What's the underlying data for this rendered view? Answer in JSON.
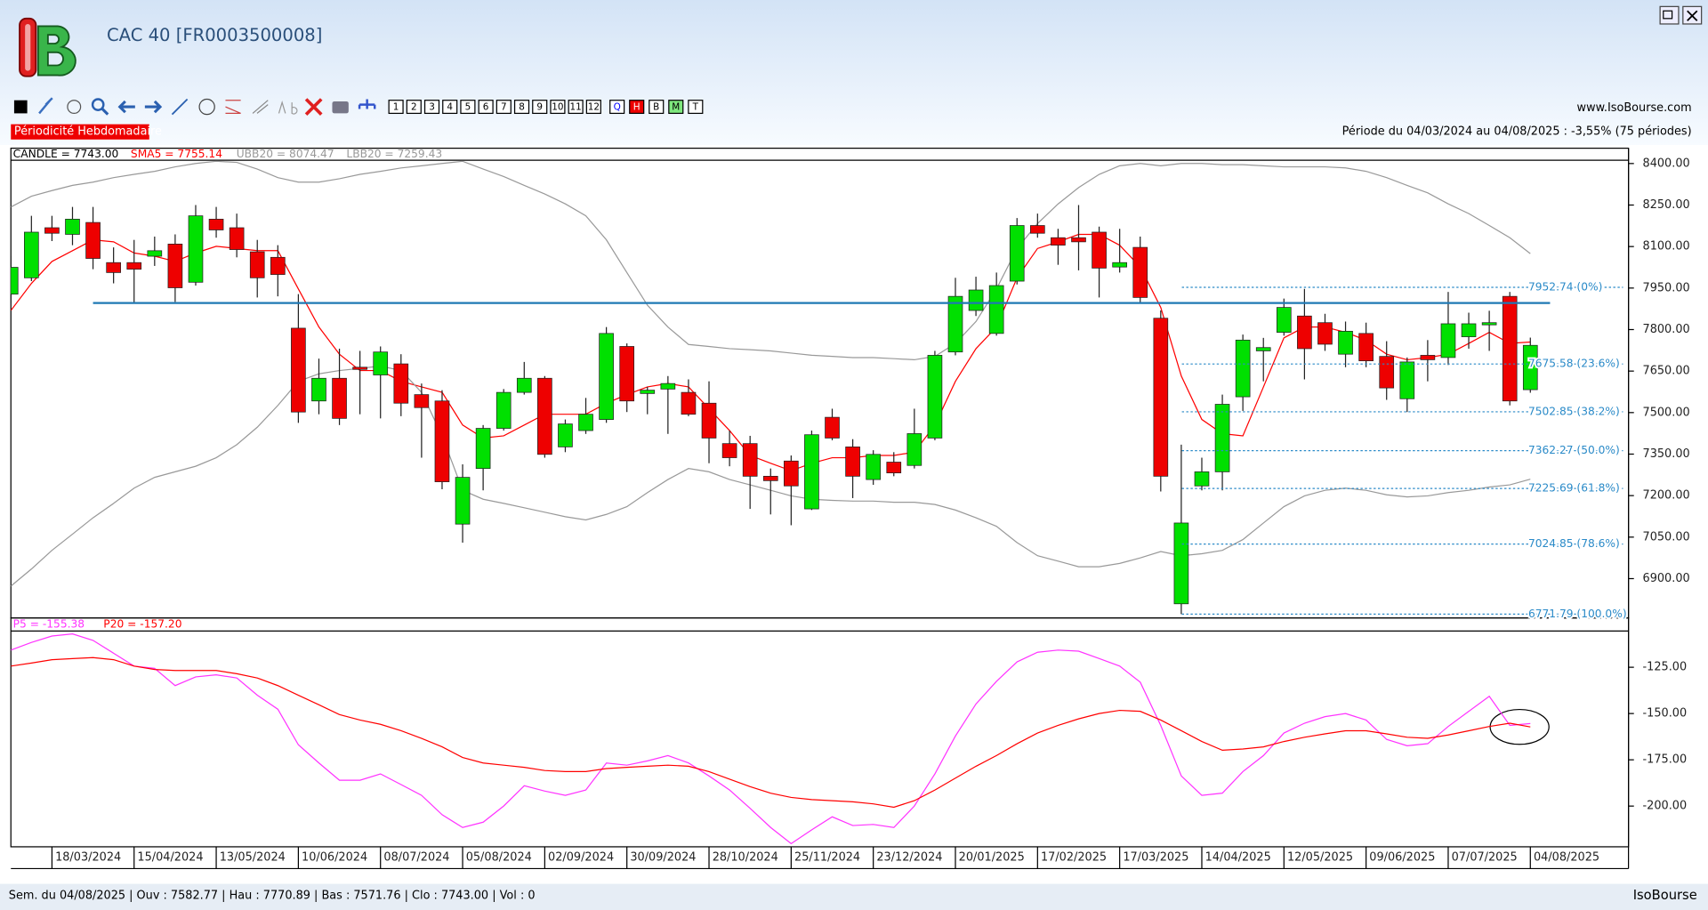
{
  "app": {
    "title": "CAC 40 [FR0003500008]",
    "website": "www.IsoBourse.com",
    "periodicity": "Périodicité Hebdomadaire",
    "period": "Période du 04/03/2024 au 04/08/2025 : -3,55% (75 périodes)",
    "footer": "Sem. du 04/08/2025 | Ouv : 7582.77 | Hau : 7770.89 | Bas : 7571.76 | Clo : 7743.00 | Vol : 0",
    "brand": "IsoBourse",
    "toolbar_buttons": [
      "1",
      "2",
      "3",
      "4",
      "5",
      "6",
      "7",
      "8",
      "9",
      "10",
      "11",
      "12",
      "Q",
      "H",
      "B",
      "M",
      "T"
    ]
  },
  "chart_data": [
    {
      "type": "candlestick",
      "categories": [
        null,
        null,
        "18/03/2024",
        null,
        null,
        null,
        "15/04/2024",
        null,
        null,
        null,
        "13/05/2024",
        null,
        null,
        null,
        "10/06/2024",
        null,
        null,
        null,
        "08/07/2024",
        null,
        null,
        null,
        "05/08/2024",
        null,
        null,
        null,
        "02/09/2024",
        null,
        null,
        null,
        "30/09/2024",
        null,
        null,
        null,
        "28/10/2024",
        null,
        null,
        null,
        "25/11/2024",
        null,
        null,
        null,
        "23/12/2024",
        null,
        null,
        null,
        "20/01/2025",
        null,
        null,
        null,
        "17/02/2025",
        null,
        null,
        null,
        "17/03/2025",
        null,
        null,
        null,
        "14/04/2025",
        null,
        null,
        null,
        "12/05/2025",
        null,
        null,
        null,
        "09/06/2025",
        null,
        null,
        null,
        "07/07/2025",
        null,
        null,
        null,
        "04/08/2025"
      ],
      "candles": {
        "name": "CANDLE",
        "legend": "CANDLE = 7743.00",
        "up_color": "#00e000",
        "down_color": "#ee0000",
        "open": [
          7928,
          7987,
          8168,
          8144,
          8187,
          8042,
          8042,
          8065,
          8109,
          7971,
          8199,
          8168,
          8081,
          8061,
          7805,
          7542,
          7624,
          7664,
          7636,
          7676,
          7565,
          7542,
          7097,
          7298,
          7443,
          7573,
          7624,
          7376,
          7435,
          7475,
          7739,
          7569,
          7585,
          7573,
          7534,
          7388,
          7388,
          7270,
          7325,
          7152,
          7483,
          7376,
          7258,
          7321,
          7309,
          7408,
          7719,
          7869,
          7786,
          7975,
          8176,
          8132,
          8132,
          8152,
          8026,
          8097,
          7841,
          6809,
          7235,
          7286,
          7557,
          7723,
          7790,
          7849,
          7825,
          7711,
          7786,
          7703,
          7550,
          7707,
          7699,
          7774,
          7817,
          7920,
          7582.77
        ],
        "high": [
          8065,
          8211,
          8211,
          8243,
          8243,
          8097,
          8124,
          8136,
          8144,
          8250,
          8243,
          8219,
          8124,
          8105,
          7928,
          7695,
          7731,
          7723,
          7739,
          7711,
          7605,
          7581,
          7313,
          7455,
          7585,
          7683,
          7632,
          7475,
          7553,
          7809,
          7750,
          7593,
          7632,
          7620,
          7613,
          7435,
          7416,
          7298,
          7345,
          7435,
          7514,
          7404,
          7364,
          7357,
          7514,
          7723,
          7987,
          7991,
          8006,
          8203,
          8219,
          8164,
          8250,
          8172,
          8164,
          8136,
          7869,
          7384,
          7337,
          7565,
          7782,
          7770,
          7912,
          7947,
          7857,
          7829,
          7825,
          7758,
          7699,
          7762,
          7936,
          7861,
          7868,
          7936,
          7770.89
        ],
        "low": [
          7896,
          7975,
          8120,
          8105,
          8018,
          7967,
          7896,
          8030,
          7900,
          7959,
          8132,
          8061,
          7916,
          7920,
          7463,
          7494,
          7455,
          7494,
          7479,
          7487,
          7337,
          7223,
          7030,
          7219,
          7435,
          7565,
          7337,
          7357,
          7423,
          7463,
          7502,
          7494,
          7423,
          7487,
          7317,
          7306,
          7152,
          7132,
          7093,
          7148,
          7400,
          7191,
          7239,
          7270,
          7298,
          7400,
          7707,
          7849,
          7778,
          7963,
          8132,
          8034,
          8014,
          7916,
          8006,
          7896,
          7215,
          6771.79,
          7219,
          7219,
          7506,
          7613,
          7778,
          7620,
          7723,
          7664,
          7664,
          7546,
          7502,
          7613,
          7672,
          7731,
          7723,
          7526,
          7571.76
        ],
        "close": [
          8025,
          8152,
          8148,
          8199,
          8057,
          8006,
          8018,
          8085,
          7951,
          8211,
          8160,
          8089,
          7987,
          7999,
          7502,
          7624,
          7479,
          7656,
          7719,
          7534,
          7518,
          7250,
          7266,
          7443,
          7573,
          7624,
          7349,
          7459,
          7494,
          7786,
          7542,
          7581,
          7605,
          7494,
          7408,
          7337,
          7270,
          7254,
          7235,
          7420,
          7408,
          7270,
          7349,
          7282,
          7424,
          7707,
          7920,
          7943,
          7959,
          8176,
          8148,
          8105,
          8117,
          8022,
          8042,
          7916,
          7270,
          7101,
          7286,
          7530,
          7762,
          7735,
          7880,
          7731,
          7747,
          7794,
          7687,
          7589,
          7683,
          7691,
          7821,
          7821,
          7825,
          7542,
          7743.0
        ]
      },
      "series": [
        {
          "name": "SMA5",
          "legend": "SMA5 = 7755.14",
          "color": "#ff0000",
          "values": [
            7869,
            7967,
            8046,
            8085,
            8124,
            8117,
            8077,
            8065,
            8046,
            8077,
            8101,
            8093,
            8085,
            8085,
            7947,
            7809,
            7711,
            7652,
            7652,
            7613,
            7593,
            7573,
            7455,
            7408,
            7416,
            7455,
            7494,
            7494,
            7494,
            7534,
            7565,
            7593,
            7605,
            7593,
            7514,
            7435,
            7345,
            7317,
            7290,
            7317,
            7337,
            7337,
            7345,
            7345,
            7357,
            7455,
            7613,
            7731,
            7809,
            7987,
            8093,
            8117,
            8144,
            8144,
            8105,
            8026,
            7880,
            7632,
            7475,
            7424,
            7416,
            7593,
            7770,
            7809,
            7809,
            7790,
            7762,
            7711,
            7691,
            7699,
            7711,
            7750,
            7790,
            7750,
            7755.14
          ]
        },
        {
          "name": "UBB20",
          "legend": "UBB20 = 8074.47",
          "color": "#999999",
          "values": [
            8243,
            8282,
            8302,
            8321,
            8333,
            8349,
            8361,
            8372,
            8388,
            8400,
            8408,
            8404,
            8380,
            8349,
            8333,
            8333,
            8345,
            8361,
            8372,
            8384,
            8392,
            8400,
            8408,
            8380,
            8353,
            8321,
            8290,
            8254,
            8211,
            8124,
            8006,
            7888,
            7809,
            7746,
            7739,
            7731,
            7727,
            7723,
            7715,
            7707,
            7703,
            7699,
            7699,
            7695,
            7691,
            7703,
            7750,
            7829,
            7947,
            8093,
            8183,
            8254,
            8313,
            8361,
            8392,
            8400,
            8392,
            8400,
            8400,
            8396,
            8396,
            8392,
            8388,
            8388,
            8388,
            8384,
            8372,
            8349,
            8321,
            8294,
            8254,
            8219,
            8176,
            8132,
            8074.47
          ]
        },
        {
          "name": "LBB20",
          "legend": "LBB20 = 7259.43",
          "color": "#999999",
          "values": [
            6873,
            6935,
            7002,
            7061,
            7120,
            7172,
            7227,
            7266,
            7286,
            7306,
            7337,
            7384,
            7447,
            7526,
            7613,
            7640,
            7652,
            7660,
            7668,
            7652,
            7573,
            7416,
            7219,
            7187,
            7172,
            7156,
            7140,
            7124,
            7112,
            7132,
            7160,
            7211,
            7258,
            7298,
            7286,
            7258,
            7239,
            7219,
            7199,
            7187,
            7183,
            7180,
            7180,
            7176,
            7176,
            7168,
            7148,
            7120,
            7089,
            7030,
            6983,
            6963,
            6943,
            6943,
            6955,
            6975,
            6998,
            6983,
            6990,
            7002,
            7041,
            7101,
            7160,
            7199,
            7219,
            7227,
            7219,
            7203,
            7195,
            7199,
            7211,
            7219,
            7231,
            7239,
            7259.43
          ]
        }
      ],
      "ylim": [
        6758,
        8412
      ],
      "yticks": [
        {
          "value": 8400,
          "label": "8400.00"
        },
        {
          "value": 8250,
          "label": "8250.00"
        },
        {
          "value": 8100,
          "label": "8100.00"
        },
        {
          "value": 7950,
          "label": "7950.00"
        },
        {
          "value": 7800,
          "label": "7800.00"
        },
        {
          "value": 7650,
          "label": "7650.00"
        },
        {
          "value": 7500,
          "label": "7500.00"
        },
        {
          "value": 7350,
          "label": "7350.00"
        },
        {
          "value": 7200,
          "label": "7200.00"
        },
        {
          "value": 7050,
          "label": "7050.00"
        },
        {
          "value": 6900,
          "label": "6900.00"
        }
      ],
      "horizontal_line": {
        "value": 7896,
        "color": "#1f78b4"
      },
      "fib_color": "#2a8ac8",
      "fib_levels": [
        {
          "value": 7952.74,
          "label": "7952.74 (0%)"
        },
        {
          "value": 7675.58,
          "label": "7675.58 (23.6%)"
        },
        {
          "value": 7502.85,
          "label": "7502.85 (38.2%)"
        },
        {
          "value": 7362.27,
          "label": "7362.27 (50.0%)"
        },
        {
          "value": 7225.69,
          "label": "7225.69 (61.8%)"
        },
        {
          "value": 7024.85,
          "label": "7024.85 (78.6%)"
        },
        {
          "value": 6771.79,
          "label": "6771.79 (100.0%)"
        }
      ]
    },
    {
      "type": "line",
      "series": [
        {
          "name": "P5",
          "legend": "P5 = -155.38",
          "color": "#ff33ff",
          "values": [
            -115.7,
            -111.6,
            -108.1,
            -107.0,
            -110.5,
            -117.4,
            -124.4,
            -125.6,
            -134.9,
            -130.2,
            -129.1,
            -130.8,
            -140.1,
            -147.7,
            -166.9,
            -176.7,
            -186.0,
            -186.0,
            -182.6,
            -188.4,
            -194.2,
            -204.7,
            -211.6,
            -208.7,
            -200.0,
            -189.0,
            -191.9,
            -194.2,
            -191.3,
            -176.7,
            -177.9,
            -175.6,
            -172.7,
            -176.7,
            -183.7,
            -191.3,
            -201.2,
            -211.6,
            -220.3,
            -212.8,
            -205.8,
            -210.5,
            -209.9,
            -211.6,
            -200.0,
            -182.6,
            -162.2,
            -144.8,
            -132.6,
            -122.1,
            -116.9,
            -115.7,
            -116.3,
            -120.3,
            -124.4,
            -133.1,
            -156.4,
            -183.7,
            -194.2,
            -193.0,
            -181.4,
            -172.7,
            -160.5,
            -155.2,
            -151.7,
            -150.0,
            -153.5,
            -164.0,
            -167.4,
            -166.3,
            -157.0,
            -148.8,
            -140.7,
            -156.4,
            -155.38
          ]
        },
        {
          "name": "P20",
          "legend": "P20 = -157.20",
          "color": "#ff0000",
          "values": [
            -124.4,
            -122.7,
            -120.9,
            -120.3,
            -119.8,
            -120.9,
            -124.4,
            -126.2,
            -126.7,
            -126.7,
            -126.7,
            -128.5,
            -130.8,
            -134.9,
            -140.1,
            -145.3,
            -150.6,
            -153.5,
            -155.8,
            -159.3,
            -163.4,
            -168.0,
            -173.8,
            -176.7,
            -177.9,
            -179.1,
            -180.8,
            -181.4,
            -181.4,
            -179.7,
            -179.1,
            -178.5,
            -177.9,
            -178.5,
            -181.4,
            -185.5,
            -189.5,
            -193.0,
            -195.3,
            -196.5,
            -197.1,
            -197.7,
            -198.8,
            -200.6,
            -197.1,
            -191.3,
            -184.9,
            -178.5,
            -172.7,
            -166.3,
            -160.5,
            -156.4,
            -152.9,
            -150.0,
            -148.3,
            -148.8,
            -153.5,
            -159.3,
            -165.1,
            -169.8,
            -169.2,
            -168.0,
            -165.1,
            -162.8,
            -161.0,
            -159.3,
            -159.3,
            -161.0,
            -162.8,
            -163.4,
            -161.6,
            -159.3,
            -157.0,
            -155.2,
            -157.2
          ]
        }
      ],
      "ylim": [
        -222,
        -106
      ],
      "yticks": [
        {
          "value": -125,
          "label": "-125.00"
        },
        {
          "value": -150,
          "label": "-150.00"
        },
        {
          "value": -175,
          "label": "-175.00"
        },
        {
          "value": -200,
          "label": "-200.00"
        }
      ]
    }
  ]
}
